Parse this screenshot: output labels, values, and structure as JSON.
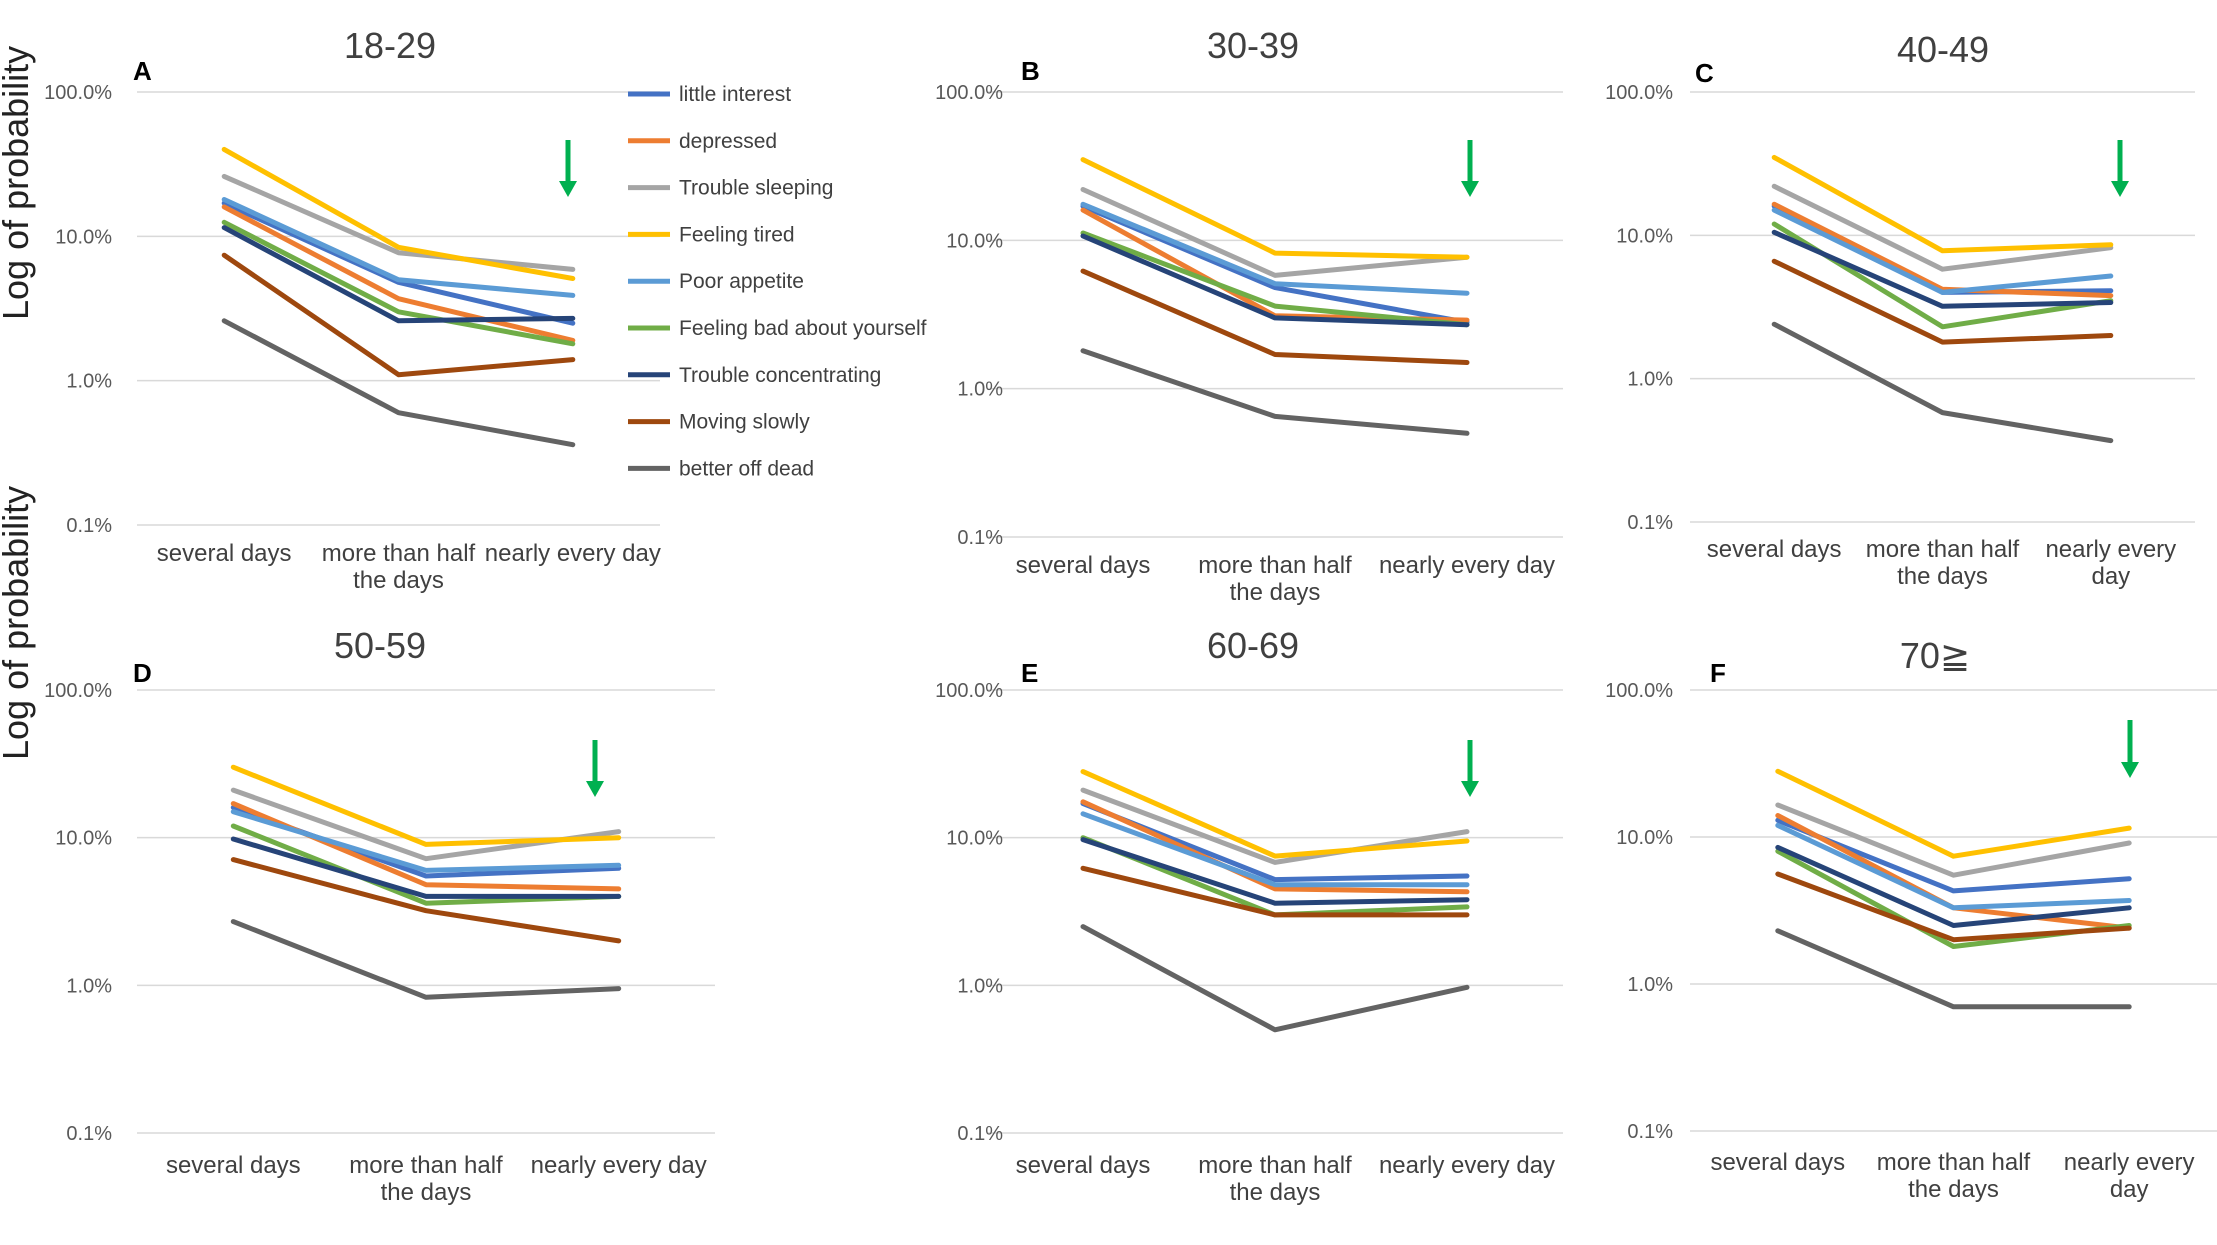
{
  "ylabel": "Log of probability",
  "series_names": [
    "little interest",
    "depressed",
    "Trouble sleeping",
    "Feeling tired",
    "Poor appetite",
    "Feeling bad about yourself",
    "Trouble concentrating",
    "Moving  slowly",
    "better off dead"
  ],
  "colors": [
    "#4472c4",
    "#ed7d31",
    "#a5a5a5",
    "#ffc000",
    "#5b9bd5",
    "#70ad47",
    "#264478",
    "#9e480e",
    "#636363"
  ],
  "arrow_color": "#00b050",
  "chart_data": [
    {
      "type": "line",
      "label": "A",
      "title": "18-29",
      "ylabel": "Log of probability",
      "ylim": [
        0.001,
        1
      ],
      "yscale": "log",
      "yticks": [
        "100.0%",
        "10.0%",
        "1.0%",
        "0.1%"
      ],
      "categories": [
        "several days",
        "more than half the days",
        "nearly every day"
      ],
      "cat_lines": [
        [
          "several days"
        ],
        [
          "more than half",
          "the days"
        ],
        [
          "nearly every day"
        ]
      ],
      "series": [
        {
          "name": "little interest",
          "values": [
            0.17,
            0.048,
            0.025
          ]
        },
        {
          "name": "depressed",
          "values": [
            0.16,
            0.037,
            0.019
          ]
        },
        {
          "name": "Trouble sleeping",
          "values": [
            0.26,
            0.077,
            0.059
          ]
        },
        {
          "name": "Feeling tired",
          "values": [
            0.4,
            0.084,
            0.051
          ]
        },
        {
          "name": "Poor appetite",
          "values": [
            0.18,
            0.05,
            0.039
          ]
        },
        {
          "name": "Feeling bad about yourself",
          "values": [
            0.125,
            0.03,
            0.018
          ]
        },
        {
          "name": "Trouble concentrating",
          "values": [
            0.115,
            0.026,
            0.027
          ]
        },
        {
          "name": "Moving  slowly",
          "values": [
            0.074,
            0.011,
            0.014
          ]
        },
        {
          "name": "better off dead",
          "values": [
            0.026,
            0.006,
            0.0036
          ]
        }
      ]
    },
    {
      "type": "line",
      "label": "B",
      "title": "30-39",
      "ylim": [
        0.001,
        1
      ],
      "yscale": "log",
      "yticks": [
        "100.0%",
        "10.0%",
        "1.0%",
        "0.1%"
      ],
      "categories": [
        "several days",
        "more than half the days",
        "nearly every day"
      ],
      "cat_lines": [
        [
          "several days"
        ],
        [
          "more than half",
          "the days"
        ],
        [
          "nearly every day"
        ]
      ],
      "series": [
        {
          "name": "little interest",
          "values": [
            0.17,
            0.048,
            0.028
          ]
        },
        {
          "name": "depressed",
          "values": [
            0.16,
            0.031,
            0.029
          ]
        },
        {
          "name": "Trouble sleeping",
          "values": [
            0.22,
            0.058,
            0.077
          ]
        },
        {
          "name": "Feeling tired",
          "values": [
            0.35,
            0.082,
            0.077
          ]
        },
        {
          "name": "Poor appetite",
          "values": [
            0.175,
            0.051,
            0.044
          ]
        },
        {
          "name": "Feeling bad about yourself",
          "values": [
            0.112,
            0.036,
            0.027
          ]
        },
        {
          "name": "Trouble concentrating",
          "values": [
            0.107,
            0.03,
            0.027
          ]
        },
        {
          "name": "Moving  slowly",
          "values": [
            0.062,
            0.017,
            0.015
          ]
        },
        {
          "name": "better off dead",
          "values": [
            0.018,
            0.0065,
            0.005
          ]
        }
      ]
    },
    {
      "type": "line",
      "label": "C",
      "title": "40-49",
      "ylim": [
        0.001,
        1
      ],
      "yscale": "log",
      "yticks": [
        "100.0%",
        "10.0%",
        "1.0%",
        "0.1%"
      ],
      "categories": [
        "several days",
        "more than half the days",
        "nearly every day"
      ],
      "cat_lines": [
        [
          "several days"
        ],
        [
          "more than half",
          "the days"
        ],
        [
          "nearly",
          "every",
          "day"
        ]
      ],
      "cat_lines_override": [
        [
          "several days"
        ],
        [
          "more than half",
          "the days"
        ],
        [
          "nearly every",
          "day"
        ]
      ],
      "series": [
        {
          "name": "little interest",
          "values": [
            0.16,
            0.04,
            0.041
          ]
        },
        {
          "name": "depressed",
          "values": [
            0.165,
            0.042,
            0.038
          ]
        },
        {
          "name": "Trouble sleeping",
          "values": [
            0.22,
            0.058,
            0.082
          ]
        },
        {
          "name": "Feeling tired",
          "values": [
            0.35,
            0.078,
            0.086
          ]
        },
        {
          "name": "Poor appetite",
          "values": [
            0.15,
            0.04,
            0.052
          ]
        },
        {
          "name": "Feeling bad about yourself",
          "values": [
            0.12,
            0.023,
            0.035
          ]
        },
        {
          "name": "Trouble concentrating",
          "values": [
            0.105,
            0.032,
            0.034
          ]
        },
        {
          "name": "Moving  slowly",
          "values": [
            0.066,
            0.018,
            0.02
          ]
        },
        {
          "name": "better off dead",
          "values": [
            0.024,
            0.0058,
            0.0037
          ]
        }
      ]
    },
    {
      "type": "line",
      "label": "D",
      "title": "50-59",
      "ylim": [
        0.001,
        1
      ],
      "yscale": "log",
      "yticks": [
        "100.0%",
        "10.0%",
        "1.0%",
        "0.1%"
      ],
      "categories": [
        "several days",
        "more than half the days",
        "nearly every day"
      ],
      "cat_lines": [
        [
          "several days"
        ],
        [
          "more than half",
          "the days"
        ],
        [
          "nearly every day"
        ]
      ],
      "series": [
        {
          "name": "little interest",
          "values": [
            0.16,
            0.055,
            0.062
          ]
        },
        {
          "name": "depressed",
          "values": [
            0.17,
            0.048,
            0.045
          ]
        },
        {
          "name": "Trouble sleeping",
          "values": [
            0.21,
            0.072,
            0.11
          ]
        },
        {
          "name": "Feeling tired",
          "values": [
            0.3,
            0.09,
            0.1
          ]
        },
        {
          "name": "Poor appetite",
          "values": [
            0.15,
            0.06,
            0.065
          ]
        },
        {
          "name": "Feeling bad about yourself",
          "values": [
            0.12,
            0.036,
            0.04
          ]
        },
        {
          "name": "Trouble concentrating",
          "values": [
            0.098,
            0.04,
            0.04
          ]
        },
        {
          "name": "Moving  slowly",
          "values": [
            0.071,
            0.032,
            0.02
          ]
        },
        {
          "name": "better off dead",
          "values": [
            0.027,
            0.0083,
            0.0095
          ]
        }
      ]
    },
    {
      "type": "line",
      "label": "E",
      "title": "60-69",
      "ylim": [
        0.001,
        1
      ],
      "yscale": "log",
      "yticks": [
        "100.0%",
        "10.0%",
        "1.0%",
        "0.1%"
      ],
      "categories": [
        "several days",
        "more than half the days",
        "nearly every day"
      ],
      "cat_lines": [
        [
          "several days"
        ],
        [
          "more than half",
          "the days"
        ],
        [
          "nearly every day"
        ]
      ],
      "series": [
        {
          "name": "little interest",
          "values": [
            0.17,
            0.052,
            0.055
          ]
        },
        {
          "name": "depressed",
          "values": [
            0.175,
            0.045,
            0.043
          ]
        },
        {
          "name": "Trouble sleeping",
          "values": [
            0.21,
            0.068,
            0.11
          ]
        },
        {
          "name": "Feeling tired",
          "values": [
            0.28,
            0.075,
            0.095
          ]
        },
        {
          "name": "Poor appetite",
          "values": [
            0.145,
            0.048,
            0.048
          ]
        },
        {
          "name": "Feeling bad about yourself",
          "values": [
            0.1,
            0.03,
            0.034
          ]
        },
        {
          "name": "Trouble concentrating",
          "values": [
            0.097,
            0.036,
            0.038
          ]
        },
        {
          "name": "Moving  slowly",
          "values": [
            0.062,
            0.03,
            0.03
          ]
        },
        {
          "name": "better off dead",
          "values": [
            0.025,
            0.005,
            0.0097
          ]
        }
      ]
    },
    {
      "type": "line",
      "label": "F",
      "title": "70≧",
      "ylim": [
        0.001,
        1
      ],
      "yscale": "log",
      "yticks": [
        "100.0%",
        "10.0%",
        "1.0%",
        "0.1%"
      ],
      "categories": [
        "several days",
        "more than half the days",
        "nearly every day"
      ],
      "cat_lines": [
        [
          "several days"
        ],
        [
          "more than half",
          "the days"
        ],
        [
          "nearly every",
          "day"
        ]
      ],
      "series": [
        {
          "name": "little interest",
          "values": [
            0.13,
            0.043,
            0.052
          ]
        },
        {
          "name": "depressed",
          "values": [
            0.14,
            0.033,
            0.024
          ]
        },
        {
          "name": "Trouble sleeping",
          "values": [
            0.165,
            0.055,
            0.091
          ]
        },
        {
          "name": "Feeling tired",
          "values": [
            0.28,
            0.074,
            0.115
          ]
        },
        {
          "name": "Poor appetite",
          "values": [
            0.12,
            0.033,
            0.037
          ]
        },
        {
          "name": "Feeling bad about yourself",
          "values": [
            0.08,
            0.018,
            0.025
          ]
        },
        {
          "name": "Trouble concentrating",
          "values": [
            0.085,
            0.025,
            0.033
          ]
        },
        {
          "name": "Moving  slowly",
          "values": [
            0.056,
            0.02,
            0.024
          ]
        },
        {
          "name": "better off dead",
          "values": [
            0.023,
            0.007,
            0.007
          ]
        }
      ]
    }
  ]
}
